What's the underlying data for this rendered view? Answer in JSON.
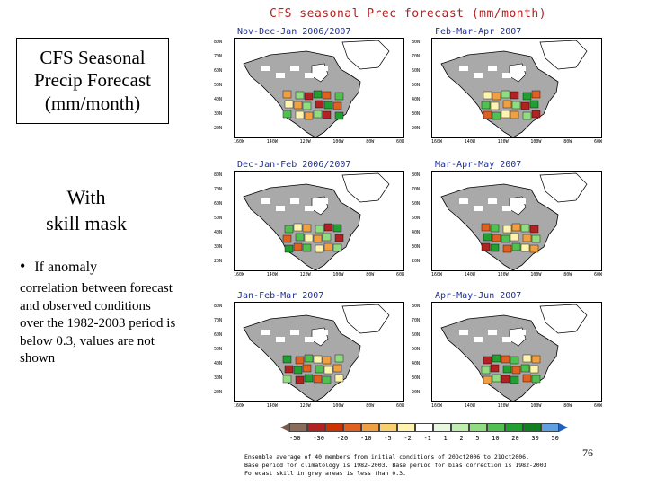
{
  "slide": {
    "title_lines": [
      "CFS Seasonal",
      "Precip Forecast",
      "(mm/month)"
    ],
    "with_mask_lines": [
      "With",
      "skill mask"
    ],
    "bullet_heading": "If anomaly",
    "bullet_body": "correlation  between forecast and observed conditions over the 1982-2003 period is below 0.3, values are not shown",
    "page_number": "76"
  },
  "figure": {
    "title": "CFS seasonal Prec forecast (mm/month)",
    "panels": [
      {
        "label": "Nov-Dec-Jan 2006/2007"
      },
      {
        "label": "Feb-Mar-Apr 2007"
      },
      {
        "label": "Dec-Jan-Feb 2006/2007"
      },
      {
        "label": "Mar-Apr-May 2007"
      },
      {
        "label": "Jan-Feb-Mar 2007"
      },
      {
        "label": "Apr-May-Jun 2007"
      }
    ],
    "latitudes": [
      "80N",
      "70N",
      "60N",
      "50N",
      "40N",
      "30N",
      "20N"
    ],
    "longitudes": [
      "160W",
      "140W",
      "120W",
      "100W",
      "80W",
      "60W"
    ],
    "colorbar": {
      "labels": [
        "-50",
        "-30",
        "-20",
        "-10",
        "-5",
        "-2",
        "-1",
        "1",
        "2",
        "5",
        "10",
        "20",
        "30",
        "50"
      ],
      "colors": [
        "#8b6b5a",
        "#b22222",
        "#cc3300",
        "#e06020",
        "#f0a040",
        "#f8d070",
        "#fff3b0",
        "#ffffff",
        "#e8f8e0",
        "#c0ecb0",
        "#90dc80",
        "#50c050",
        "#20a030",
        "#108020",
        "#60a0e0"
      ]
    },
    "notes": [
      "Ensemble average of 40 members from initial conditions of 20Oct2006 to 21Oct2006.",
      "Base period for climatology is 1982-2003. Base period for bias correction is 1982-2003",
      "Forecast skill in grey areas is less than 0.3."
    ]
  }
}
